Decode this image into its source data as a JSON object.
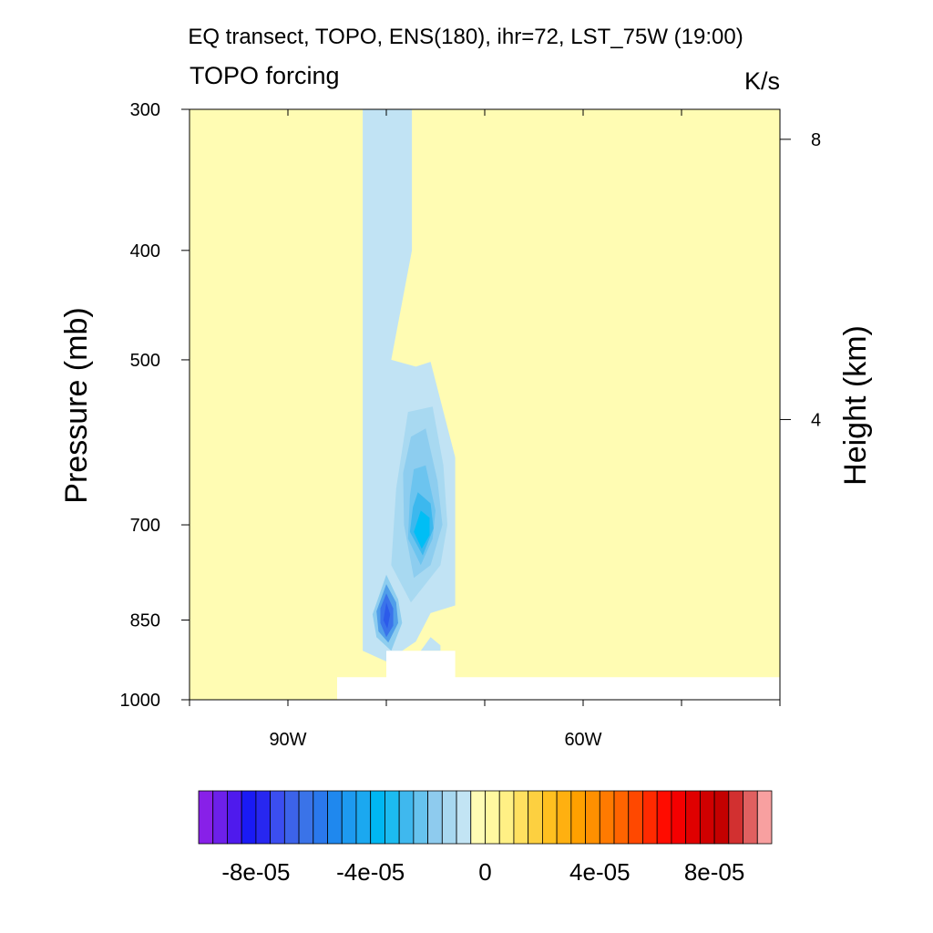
{
  "chart_data": {
    "type": "heatmap",
    "title": "EQ transect, TOPO, ENS(180), ihr=72, LST_75W (19:00)",
    "left_subtitle": "TOPO forcing",
    "right_subtitle": "K/s",
    "ylabel": "Pressure (mb)",
    "y2label": "Height (km)",
    "xlim": [
      -100,
      -40
    ],
    "ylim": [
      1000,
      300
    ],
    "y_scale": "log",
    "x_ticks": [
      {
        "value": -90,
        "label": "90W"
      },
      {
        "value": -60,
        "label": "60W"
      }
    ],
    "x_minor_ticks": [
      -100,
      -80,
      -70,
      -50,
      -40
    ],
    "y_ticks": [
      {
        "value": 300,
        "label": "300"
      },
      {
        "value": 400,
        "label": "400"
      },
      {
        "value": 500,
        "label": "500"
      },
      {
        "value": 700,
        "label": "700"
      },
      {
        "value": 850,
        "label": "850"
      },
      {
        "value": 1000,
        "label": "1000"
      }
    ],
    "y2_ticks": [
      {
        "value_km": 8,
        "label": "8"
      },
      {
        "value_km": 4,
        "label": "4"
      }
    ],
    "background_value": 0.0,
    "background_color": "#fffcb3",
    "missing_color": "#ffffff",
    "missing_regions": [
      {
        "lon": [
          -85,
          -40
        ],
        "p": [
          955,
          1000
        ]
      },
      {
        "lon": [
          -80,
          -73
        ],
        "p": [
          905,
          1000
        ]
      }
    ],
    "negative_bands": [
      {
        "color": "#c1e3f4",
        "polygon": [
          {
            "lon": -82.4,
            "p": 300
          },
          {
            "lon": -77.4,
            "p": 300
          },
          {
            "lon": -77.4,
            "p": 400
          },
          {
            "lon": -79.5,
            "p": 500
          },
          {
            "lon": -77.0,
            "p": 507
          },
          {
            "lon": -75.5,
            "p": 502
          },
          {
            "lon": -73.0,
            "p": 610
          },
          {
            "lon": -73.0,
            "p": 825
          },
          {
            "lon": -75.5,
            "p": 838
          },
          {
            "lon": -77.0,
            "p": 888
          },
          {
            "lon": -80.0,
            "p": 925
          },
          {
            "lon": -82.4,
            "p": 905
          }
        ]
      },
      {
        "color": "#c1e3f4",
        "polygon": [
          {
            "lon": -76.5,
            "p": 905
          },
          {
            "lon": -75.5,
            "p": 880
          },
          {
            "lon": -74.5,
            "p": 895
          },
          {
            "lon": -74.5,
            "p": 905
          }
        ]
      },
      {
        "color": "#a8d9f1",
        "polygon": [
          {
            "lon": -77.8,
            "p": 556
          },
          {
            "lon": -75.3,
            "p": 550
          },
          {
            "lon": -74.2,
            "p": 620
          },
          {
            "lon": -73.8,
            "p": 700
          },
          {
            "lon": -74.5,
            "p": 760
          },
          {
            "lon": -77.5,
            "p": 820
          },
          {
            "lon": -79.5,
            "p": 760
          },
          {
            "lon": -79.0,
            "p": 650
          }
        ]
      },
      {
        "color": "#8dcdef",
        "polygon": [
          {
            "lon": -77.5,
            "p": 585
          },
          {
            "lon": -76.0,
            "p": 575
          },
          {
            "lon": -74.8,
            "p": 640
          },
          {
            "lon": -74.3,
            "p": 700
          },
          {
            "lon": -75.5,
            "p": 760
          },
          {
            "lon": -77.2,
            "p": 780
          },
          {
            "lon": -78.2,
            "p": 700
          },
          {
            "lon": -78.3,
            "p": 630
          }
        ]
      },
      {
        "color": "#6cc4ef",
        "polygon": [
          {
            "lon": -77.2,
            "p": 625
          },
          {
            "lon": -76.0,
            "p": 620
          },
          {
            "lon": -75.0,
            "p": 680
          },
          {
            "lon": -75.3,
            "p": 720
          },
          {
            "lon": -76.5,
            "p": 760
          },
          {
            "lon": -77.8,
            "p": 720
          },
          {
            "lon": -77.6,
            "p": 660
          }
        ]
      },
      {
        "color": "#3cb8ee",
        "polygon": [
          {
            "lon": -76.8,
            "p": 655
          },
          {
            "lon": -75.5,
            "p": 670
          },
          {
            "lon": -75.2,
            "p": 705
          },
          {
            "lon": -76.3,
            "p": 745
          },
          {
            "lon": -77.6,
            "p": 710
          },
          {
            "lon": -77.3,
            "p": 675
          }
        ]
      },
      {
        "color": "#00bef5",
        "polygon": [
          {
            "lon": -76.5,
            "p": 680
          },
          {
            "lon": -75.6,
            "p": 690
          },
          {
            "lon": -75.6,
            "p": 715
          },
          {
            "lon": -76.4,
            "p": 735
          },
          {
            "lon": -77.2,
            "p": 710
          }
        ]
      },
      {
        "color": "#8dcdef",
        "polygon": [
          {
            "lon": -80.0,
            "p": 775
          },
          {
            "lon": -78.8,
            "p": 815
          },
          {
            "lon": -78.4,
            "p": 855
          },
          {
            "lon": -79.5,
            "p": 905
          },
          {
            "lon": -81.0,
            "p": 880
          },
          {
            "lon": -81.4,
            "p": 840
          }
        ]
      },
      {
        "color": "#509ee9",
        "polygon": [
          {
            "lon": -80.0,
            "p": 790
          },
          {
            "lon": -79.0,
            "p": 820
          },
          {
            "lon": -78.8,
            "p": 855
          },
          {
            "lon": -79.8,
            "p": 890
          },
          {
            "lon": -80.8,
            "p": 870
          },
          {
            "lon": -81.0,
            "p": 835
          }
        ]
      },
      {
        "color": "#3a73ea",
        "polygon": [
          {
            "lon": -80.0,
            "p": 805
          },
          {
            "lon": -79.3,
            "p": 830
          },
          {
            "lon": -79.3,
            "p": 860
          },
          {
            "lon": -80.0,
            "p": 880
          },
          {
            "lon": -80.6,
            "p": 855
          },
          {
            "lon": -80.6,
            "p": 830
          }
        ]
      },
      {
        "color": "#2c5bea",
        "polygon": [
          {
            "lon": -80.0,
            "p": 820
          },
          {
            "lon": -79.6,
            "p": 840
          },
          {
            "lon": -79.9,
            "p": 865
          },
          {
            "lon": -80.3,
            "p": 850
          }
        ]
      }
    ],
    "colorbar": {
      "colors": [
        "#8820e8",
        "#6d20ea",
        "#4f1aed",
        "#1a1af5",
        "#2727f0",
        "#3b4ef0",
        "#3c63ea",
        "#3a73e8",
        "#2a78ec",
        "#1f88ee",
        "#1d9af0",
        "#1ba8f0",
        "#00b7f2",
        "#1cbbf0",
        "#3fb8ee",
        "#66c3ee",
        "#8ecbee",
        "#a8d8f0",
        "#c2e4f4",
        "#fffcb5",
        "#fff8a0",
        "#fff085",
        "#ffe060",
        "#fdd040",
        "#ffc020",
        "#ffb010",
        "#ffa000",
        "#ff9000",
        "#ff7a00",
        "#ff6400",
        "#ff4800",
        "#ff2a00",
        "#ff0c00",
        "#f40000",
        "#e00000",
        "#d00000",
        "#c40000",
        "#d23030",
        "#e06060",
        "#f8a0a0"
      ],
      "value_min": -0.0001,
      "value_max": 0.0001,
      "ticks": [
        {
          "value": -8e-05,
          "label": "-8e-05"
        },
        {
          "value": -4e-05,
          "label": "-4e-05"
        },
        {
          "value": 0.0,
          "label": "0"
        },
        {
          "value": 4e-05,
          "label": "4e-05"
        },
        {
          "value": 8e-05,
          "label": "8e-05"
        }
      ]
    }
  }
}
